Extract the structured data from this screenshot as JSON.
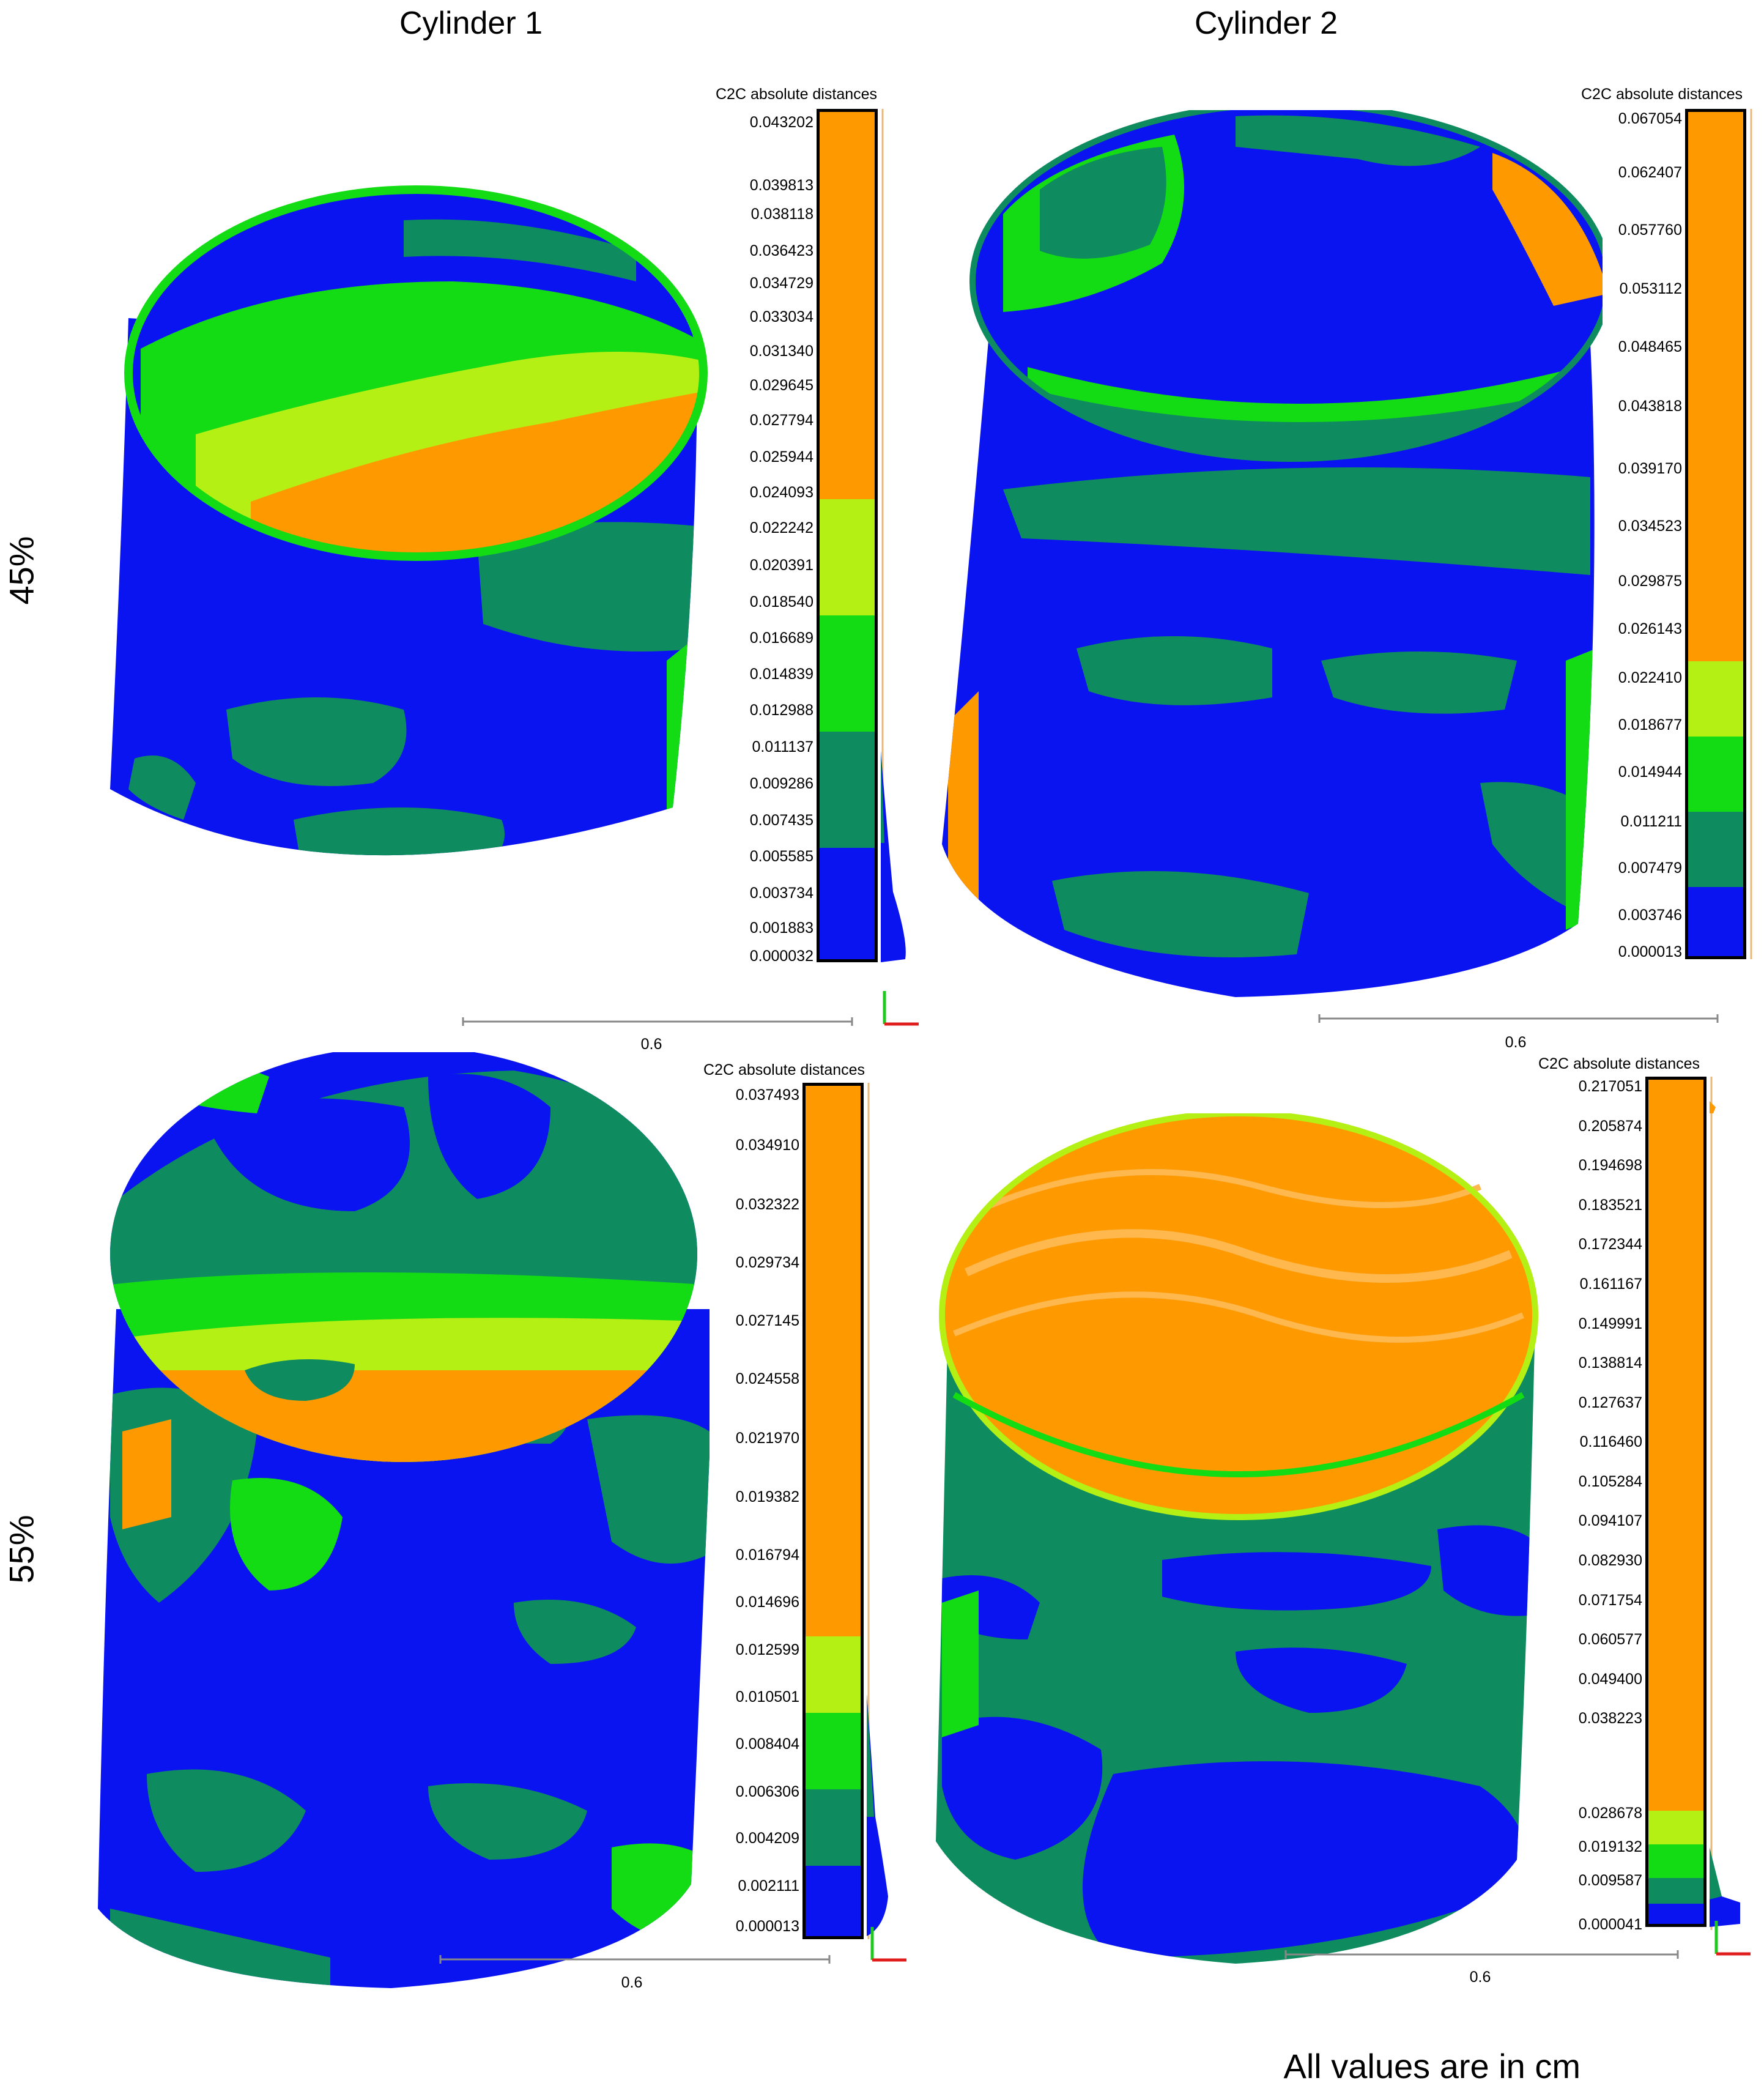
{
  "column_titles": [
    "Cylinder 1",
    "Cylinder 2"
  ],
  "row_labels": [
    "45%",
    "55%"
  ],
  "footer_note": "All values are in cm",
  "colors": {
    "blue": "#0a14f0",
    "teal": "#0f8c5f",
    "green": "#14dc14",
    "yellow_green": "#b4f014",
    "orange": "#ff9900"
  },
  "panels": [
    {
      "id": "45-cyl1",
      "legend_title": "C2C absolute distances",
      "ticks": [
        "0.043202",
        "0.039813",
        "0.038118",
        "0.036423",
        "0.034729",
        "0.033034",
        "0.031340",
        "0.029645",
        "0.027794",
        "0.025944",
        "0.024093",
        "0.022242",
        "0.020391",
        "0.018540",
        "0.016689",
        "0.014839",
        "0.012988",
        "0.011137",
        "0.009286",
        "0.007435",
        "0.005585",
        "0.003734",
        "0.001883",
        "0.000032"
      ],
      "bands": [
        {
          "color": "orange",
          "from": 0.024093,
          "to": 0.043202
        },
        {
          "color": "yellow_green",
          "from": 0.01854,
          "to": 0.024093
        },
        {
          "color": "green",
          "from": 0.011137,
          "to": 0.01854
        },
        {
          "color": "teal",
          "from": 0.005585,
          "to": 0.011137
        },
        {
          "color": "blue",
          "from": 3.2e-05,
          "to": 0.005585
        }
      ],
      "scale_label": "0.6",
      "surface": {
        "top": "orange-green",
        "sides": "blue-teal"
      }
    },
    {
      "id": "45-cyl2",
      "legend_title": "C2C absolute distances",
      "ticks": [
        "0.067054",
        "0.062407",
        "0.057760",
        "0.053112",
        "0.048465",
        "0.043818",
        "0.039170",
        "0.034523",
        "0.029875",
        "0.026143",
        "0.022410",
        "0.018677",
        "0.014944",
        "0.011211",
        "0.007479",
        "0.003746",
        "0.000013"
      ],
      "bands": [
        {
          "color": "orange",
          "from": 0.026143,
          "to": 0.067054
        },
        {
          "color": "yellow_green",
          "from": 0.018677,
          "to": 0.026143
        },
        {
          "color": "green",
          "from": 0.014944,
          "to": 0.018677
        },
        {
          "color": "teal",
          "from": 0.007479,
          "to": 0.014944
        },
        {
          "color": "blue",
          "from": 1.3e-05,
          "to": 0.007479
        }
      ],
      "scale_label": "0.6",
      "surface": {
        "top": "blue",
        "sides": "blue-teal"
      }
    },
    {
      "id": "55-cyl1",
      "legend_title": "C2C absolute distances",
      "ticks": [
        "0.037493",
        "0.034910",
        "0.032322",
        "0.029734",
        "0.027145",
        "0.024558",
        "0.021970",
        "0.019382",
        "0.016794",
        "0.014696",
        "0.012599",
        "0.010501",
        "0.008404",
        "0.006306",
        "0.004209",
        "0.002111",
        "0.000013"
      ],
      "bands": [
        {
          "color": "orange",
          "from": 0.014696,
          "to": 0.037493
        },
        {
          "color": "yellow_green",
          "from": 0.010501,
          "to": 0.014696
        },
        {
          "color": "green",
          "from": 0.006306,
          "to": 0.010501
        },
        {
          "color": "teal",
          "from": 0.004209,
          "to": 0.006306
        },
        {
          "color": "blue",
          "from": 1.3e-05,
          "to": 0.004209
        }
      ],
      "scale_label": "0.6",
      "surface": {
        "top": "blue-teal-green",
        "sides": "blue-teal-green"
      }
    },
    {
      "id": "55-cyl2",
      "legend_title": "C2C absolute distances",
      "ticks": [
        "0.217051",
        "0.205874",
        "0.194698",
        "0.183521",
        "0.172344",
        "0.161167",
        "0.149991",
        "0.138814",
        "0.127637",
        "0.116460",
        "0.105284",
        "0.094107",
        "0.082930",
        "0.071754",
        "0.060577",
        "0.049400",
        "0.038223",
        "0.028678",
        "0.019132",
        "0.009587",
        "0.000041"
      ],
      "bands": [
        {
          "color": "orange",
          "from": 0.028678,
          "to": 0.217051
        },
        {
          "color": "yellow_green",
          "from": 0.019132,
          "to": 0.028678
        },
        {
          "color": "green",
          "from": 0.009587,
          "to": 0.019132
        },
        {
          "color": "teal",
          "from": 0.003,
          "to": 0.009587
        },
        {
          "color": "blue",
          "from": 4.1e-05,
          "to": 0.003
        }
      ],
      "scale_label": "0.6",
      "surface": {
        "top": "orange",
        "sides": "teal-blue"
      }
    }
  ]
}
